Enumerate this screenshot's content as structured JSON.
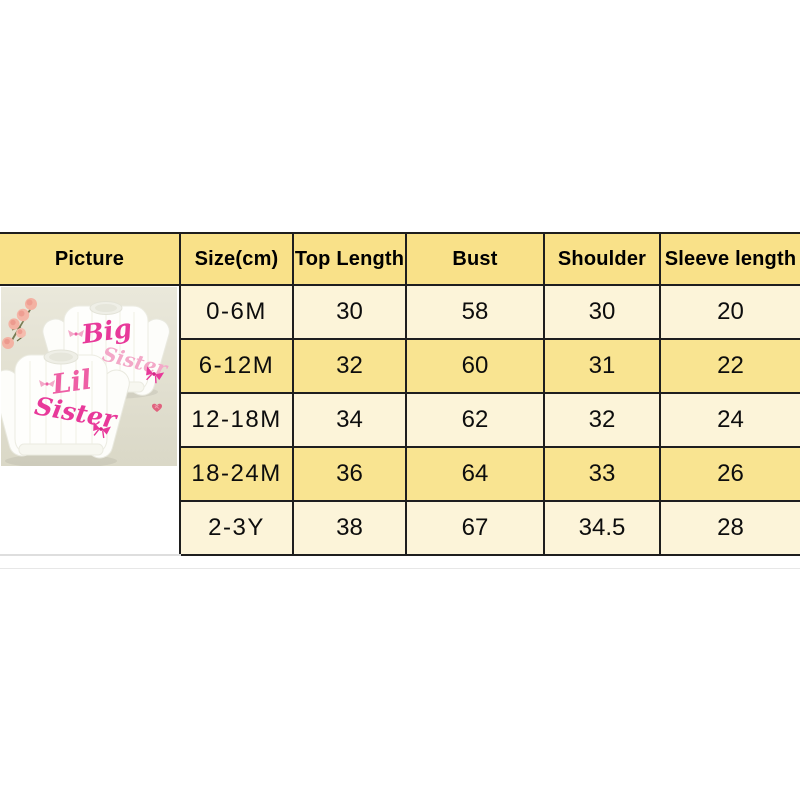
{
  "colors": {
    "header_bg": "#F9E189",
    "row_light": "#FCF4D9",
    "row_dark": "#F9E491",
    "border": "#1E1E1E",
    "photo_bg": "#E4E2D3",
    "photo_pink_deep": "#E8399A",
    "photo_pink_mid": "#EE5FA5",
    "photo_pink_light": "#F3A8C8",
    "photo_cream": "#EBCB9E",
    "heart_pink": "#E0627E",
    "flower_pink": "#F3B2A3"
  },
  "table": {
    "headers": [
      "Picture",
      "Size(cm)",
      "Top Length",
      "Bust",
      "Shoulder",
      "Sleeve length"
    ],
    "rows": [
      {
        "size": "0-6M",
        "top_length": "30",
        "bust": "58",
        "shoulder": "30",
        "sleeve": "20"
      },
      {
        "size": "6-12M",
        "top_length": "32",
        "bust": "60",
        "shoulder": "31",
        "sleeve": "22"
      },
      {
        "size": "12-18M",
        "top_length": "34",
        "bust": "62",
        "shoulder": "32",
        "sleeve": "24"
      },
      {
        "size": "18-24M",
        "top_length": "36",
        "bust": "64",
        "shoulder": "33",
        "sleeve": "26"
      },
      {
        "size": "2-3Y",
        "top_length": "38",
        "bust": "67",
        "shoulder": "34.5",
        "sleeve": "28"
      }
    ]
  },
  "photo": {
    "back_sweater_line1": "Big",
    "back_sweater_line2": "Sister",
    "front_sweater_line1": "Lil",
    "front_sweater_line2": "Sister"
  }
}
